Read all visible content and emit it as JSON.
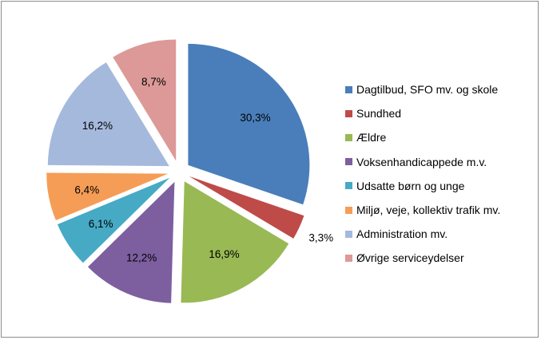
{
  "chart_data": {
    "type": "pie",
    "exploded": true,
    "legend_position": "right",
    "slices": [
      {
        "label": "Dagtilbud, SFO mv. og skole",
        "value": 30.3,
        "value_label": "30,3%",
        "color": "#4a7ebb"
      },
      {
        "label": "Sundhed",
        "value": 3.3,
        "value_label": "3,3%",
        "color": "#be4b48"
      },
      {
        "label": "Ældre",
        "value": 16.9,
        "value_label": "16,9%",
        "color": "#98b954"
      },
      {
        "label": "Voksenhandicappede m.v.",
        "value": 12.2,
        "value_label": "12,2%",
        "color": "#7d5fa0"
      },
      {
        "label": "Udsatte børn og unge",
        "value": 6.1,
        "value_label": "6,1%",
        "color": "#46aac5"
      },
      {
        "label": "Miljø, veje, kollektiv trafik mv.",
        "value": 6.4,
        "value_label": "6,4%",
        "color": "#f59d56"
      },
      {
        "label": "Administration mv.",
        "value": 16.2,
        "value_label": "16,2%",
        "color": "#a5b9dc"
      },
      {
        "label": "Øvrige serviceydelser",
        "value": 8.7,
        "value_label": "8,7%",
        "color": "#dc9998"
      }
    ]
  }
}
